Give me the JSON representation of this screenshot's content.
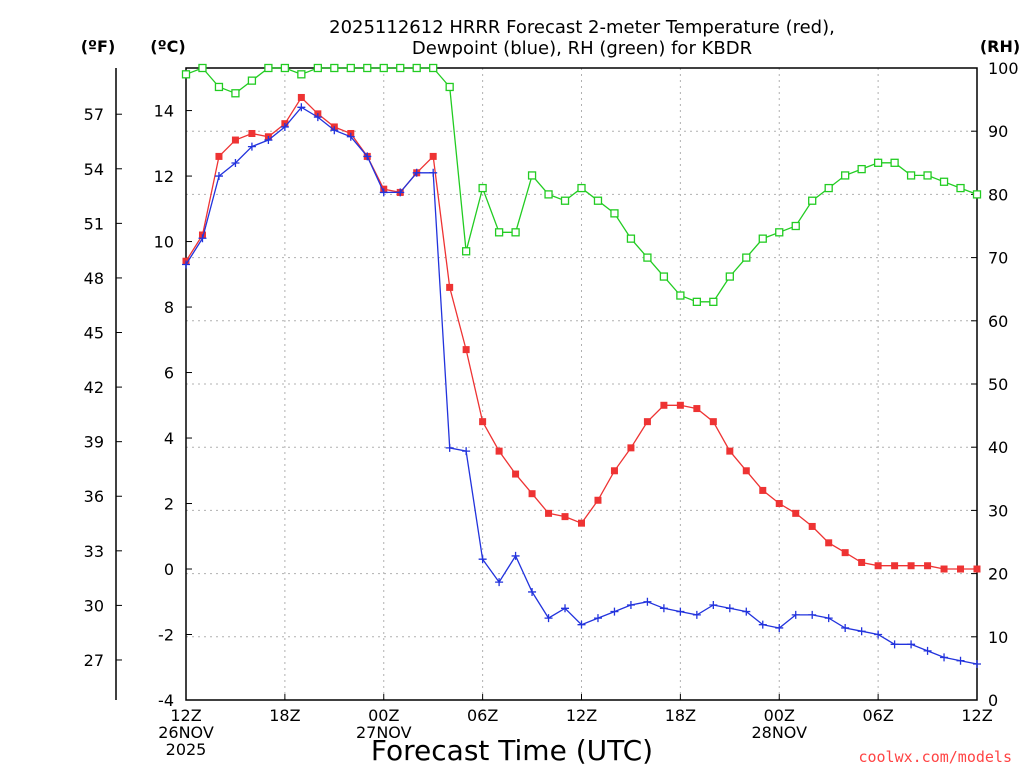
{
  "title": {
    "line1": "2025112612 HRRR Forecast 2-meter Temperature (red),",
    "line2": "Dewpoint (blue), RH (green) for KBDR"
  },
  "credit": "coolwx.com/models",
  "colors": {
    "temperature": "#ee3333",
    "dewpoint": "#2233dd",
    "rh": "#22cc22",
    "credit": "#ff4444"
  },
  "chart_data": {
    "type": "line",
    "title": "2025112612 HRRR Forecast 2-meter Temperature (red), Dewpoint (blue), RH (green) for KBDR",
    "xlabel": "Forecast Time (UTC)",
    "x_ticks": [
      {
        "hour": 0,
        "lines": [
          "12Z",
          "26NOV",
          "2025"
        ]
      },
      {
        "hour": 6,
        "lines": [
          "18Z"
        ]
      },
      {
        "hour": 12,
        "lines": [
          "00Z",
          "27NOV"
        ]
      },
      {
        "hour": 18,
        "lines": [
          "06Z"
        ]
      },
      {
        "hour": 24,
        "lines": [
          "12Z"
        ]
      },
      {
        "hour": 30,
        "lines": [
          "18Z"
        ]
      },
      {
        "hour": 36,
        "lines": [
          "00Z",
          "28NOV"
        ]
      },
      {
        "hour": 42,
        "lines": [
          "06Z"
        ]
      },
      {
        "hour": 48,
        "lines": [
          "12Z"
        ]
      }
    ],
    "x_range": [
      0,
      48
    ],
    "y_left_celsius": {
      "label": "(ºC)",
      "range": [
        -4,
        15.3
      ],
      "ticks": [
        -4,
        -2,
        0,
        2,
        4,
        6,
        8,
        10,
        12,
        14
      ]
    },
    "y_left_fahrenheit": {
      "label": "(ºF)",
      "ticks": [
        27,
        30,
        33,
        36,
        39,
        42,
        45,
        48,
        51,
        54,
        57
      ]
    },
    "y_right_rh": {
      "label": "(RH)",
      "range": [
        0,
        100
      ],
      "ticks": [
        0,
        10,
        20,
        30,
        40,
        50,
        60,
        70,
        80,
        90,
        100
      ]
    },
    "series": [
      {
        "name": "Temperature",
        "unit": "ºC",
        "axis": "celsius",
        "marker": "filled-square",
        "x": [
          0,
          1,
          2,
          3,
          4,
          5,
          6,
          7,
          8,
          9,
          10,
          11,
          12,
          13,
          14,
          15,
          16,
          17,
          18,
          19,
          20,
          21,
          22,
          23,
          24,
          25,
          26,
          27,
          28,
          29,
          30,
          31,
          32,
          33,
          34,
          35,
          36,
          37,
          38,
          39,
          40,
          41,
          42,
          43,
          44,
          45,
          46,
          47,
          48
        ],
        "values": [
          9.4,
          10.2,
          12.6,
          13.1,
          13.3,
          13.2,
          13.6,
          14.4,
          13.9,
          13.5,
          13.3,
          12.6,
          11.6,
          11.5,
          12.1,
          12.6,
          8.6,
          6.7,
          4.5,
          3.6,
          2.9,
          2.3,
          1.7,
          1.6,
          1.4,
          2.1,
          3.0,
          3.7,
          4.5,
          5.0,
          5.0,
          4.9,
          4.5,
          3.6,
          3.0,
          2.4,
          2.0,
          1.7,
          1.3,
          0.8,
          0.5,
          0.2,
          0.1,
          0.1,
          0.1,
          0.1,
          0.0,
          0.0,
          0.0
        ]
      },
      {
        "name": "Dewpoint",
        "unit": "ºC",
        "axis": "celsius",
        "marker": "plus",
        "x": [
          0,
          1,
          2,
          3,
          4,
          5,
          6,
          7,
          8,
          9,
          10,
          11,
          12,
          13,
          14,
          15,
          16,
          17,
          18,
          19,
          20,
          21,
          22,
          23,
          24,
          25,
          26,
          27,
          28,
          29,
          30,
          31,
          32,
          33,
          34,
          35,
          36,
          37,
          38,
          39,
          40,
          41,
          42,
          43,
          44,
          45,
          46,
          47,
          48
        ],
        "values": [
          9.3,
          10.1,
          12.0,
          12.4,
          12.9,
          13.1,
          13.5,
          14.1,
          13.8,
          13.4,
          13.2,
          12.6,
          11.5,
          11.5,
          12.1,
          12.1,
          3.7,
          3.6,
          0.3,
          -0.4,
          0.4,
          -0.7,
          -1.5,
          -1.2,
          -1.7,
          -1.5,
          -1.3,
          -1.1,
          -1.0,
          -1.2,
          -1.3,
          -1.4,
          -1.1,
          -1.2,
          -1.3,
          -1.7,
          -1.8,
          -1.4,
          -1.4,
          -1.5,
          -1.8,
          -1.9,
          -2.0,
          -2.3,
          -2.3,
          -2.5,
          -2.7,
          -2.8,
          -2.9
        ]
      },
      {
        "name": "RH",
        "unit": "%",
        "axis": "rh",
        "marker": "open-square",
        "x": [
          0,
          1,
          2,
          3,
          4,
          5,
          6,
          7,
          8,
          9,
          10,
          11,
          12,
          13,
          14,
          15,
          16,
          17,
          18,
          19,
          20,
          21,
          22,
          23,
          24,
          25,
          26,
          27,
          28,
          29,
          30,
          31,
          32,
          33,
          34,
          35,
          36,
          37,
          38,
          39,
          40,
          41,
          42,
          43,
          44,
          45,
          46,
          47,
          48
        ],
        "values": [
          99,
          100,
          97,
          96,
          98,
          100,
          100,
          99,
          100,
          100,
          100,
          100,
          100,
          100,
          100,
          100,
          97,
          71,
          81,
          74,
          74,
          83,
          80,
          79,
          81,
          79,
          77,
          73,
          70,
          67,
          64,
          63,
          63,
          67,
          70,
          73,
          74,
          75,
          79,
          81,
          83,
          84,
          85,
          85,
          83,
          83,
          82,
          81,
          80
        ]
      }
    ]
  }
}
